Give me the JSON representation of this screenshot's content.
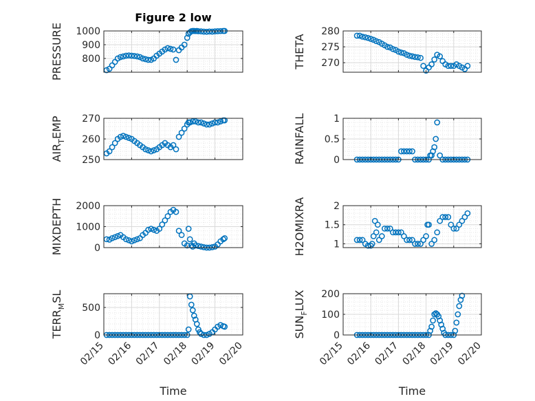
{
  "figure": {
    "title": "Figure 2 low"
  },
  "chart_data": [
    {
      "type": "scatter",
      "marker": "circle-open",
      "color": "#0072BD",
      "ylabel": "PRESSURE",
      "xlabel": "",
      "title": "Figure 2 low",
      "xlim": [
        0,
        5
      ],
      "ylim": [
        700,
        1000
      ],
      "yticks": [
        800,
        900,
        1000
      ],
      "grid": true,
      "minor_grid": true,
      "x": [
        0.1,
        0.2,
        0.3,
        0.4,
        0.5,
        0.6,
        0.7,
        0.8,
        0.9,
        1.0,
        1.1,
        1.2,
        1.3,
        1.4,
        1.5,
        1.6,
        1.7,
        1.8,
        1.9,
        2.0,
        2.1,
        2.2,
        2.3,
        2.4,
        2.5,
        2.6,
        2.7,
        2.8,
        2.9,
        3.0,
        3.05,
        3.1,
        3.15,
        3.2,
        3.25,
        3.3,
        3.35,
        3.4,
        3.5,
        3.6,
        3.7,
        3.8,
        3.9,
        4.0,
        4.1,
        4.2,
        4.3,
        4.35
      ],
      "y": [
        715,
        725,
        750,
        775,
        800,
        810,
        815,
        820,
        822,
        820,
        818,
        815,
        810,
        800,
        795,
        790,
        790,
        800,
        820,
        835,
        850,
        865,
        875,
        870,
        865,
        790,
        860,
        880,
        900,
        950,
        980,
        990,
        998,
        1000,
        1000,
        999,
        1000,
        998,
        997,
        995,
        994,
        996,
        995,
        997,
        998,
        999,
        1000,
        1000
      ]
    },
    {
      "type": "scatter",
      "marker": "circle-open",
      "color": "#0072BD",
      "ylabel": "THETA",
      "xlabel": "",
      "xlim": [
        0,
        5
      ],
      "ylim": [
        267,
        280
      ],
      "yticks": [
        270,
        275,
        280
      ],
      "grid": true,
      "minor_grid": true,
      "x": [
        0.5,
        0.6,
        0.7,
        0.8,
        0.9,
        1.0,
        1.1,
        1.2,
        1.3,
        1.4,
        1.5,
        1.6,
        1.7,
        1.8,
        1.9,
        2.0,
        2.1,
        2.2,
        2.3,
        2.4,
        2.5,
        2.6,
        2.7,
        2.8,
        2.9,
        3.0,
        3.1,
        3.2,
        3.3,
        3.4,
        3.5,
        3.6,
        3.7,
        3.8,
        3.9,
        4.0,
        4.1,
        4.2,
        4.3,
        4.4,
        4.5
      ],
      "y": [
        278.5,
        278.5,
        278.2,
        278,
        277.8,
        277.5,
        277.2,
        276.8,
        276.5,
        276,
        275.5,
        275,
        274.8,
        274.3,
        274,
        273.5,
        273.2,
        273,
        272.5,
        272.2,
        272,
        271.8,
        271.7,
        271.5,
        269,
        267.5,
        268.5,
        269.5,
        271,
        272.5,
        272,
        270.5,
        269.5,
        269,
        269,
        269,
        269.5,
        269,
        268.5,
        268,
        269
      ]
    },
    {
      "type": "scatter",
      "marker": "circle-open",
      "color": "#0072BD",
      "ylabel": "AIR_TEMP",
      "xlabel": "",
      "xlim": [
        0,
        5
      ],
      "ylim": [
        250,
        270
      ],
      "yticks": [
        250,
        260,
        270
      ],
      "grid": true,
      "minor_grid": true,
      "x": [
        0.1,
        0.2,
        0.3,
        0.4,
        0.5,
        0.6,
        0.7,
        0.8,
        0.9,
        1.0,
        1.1,
        1.2,
        1.3,
        1.4,
        1.5,
        1.6,
        1.7,
        1.8,
        1.9,
        2.0,
        2.1,
        2.2,
        2.3,
        2.4,
        2.5,
        2.6,
        2.7,
        2.8,
        2.9,
        3.0,
        3.05,
        3.1,
        3.2,
        3.3,
        3.4,
        3.5,
        3.6,
        3.7,
        3.8,
        3.9,
        4.0,
        4.1,
        4.2,
        4.3,
        4.35
      ],
      "y": [
        253,
        254,
        256,
        258,
        260,
        261,
        261.5,
        261,
        260.5,
        260,
        259,
        258,
        257,
        256,
        255,
        254.5,
        254,
        254.5,
        255,
        256,
        257,
        258,
        257,
        256,
        257,
        255,
        261,
        263,
        265,
        267,
        268,
        268,
        268.5,
        268.5,
        268,
        268,
        267.5,
        267,
        267,
        267.5,
        268,
        268,
        268.5,
        269,
        269
      ]
    },
    {
      "type": "scatter",
      "marker": "circle-open",
      "color": "#0072BD",
      "ylabel": "RAINFALL",
      "xlabel": "",
      "xlim": [
        0,
        5
      ],
      "ylim": [
        0,
        1
      ],
      "yticks": [
        0,
        0.5,
        1
      ],
      "grid": true,
      "minor_grid": true,
      "x": [
        0.5,
        0.6,
        0.7,
        0.8,
        0.9,
        1.0,
        1.1,
        1.2,
        1.3,
        1.4,
        1.5,
        1.6,
        1.7,
        1.8,
        1.9,
        2.0,
        2.1,
        2.2,
        2.3,
        2.4,
        2.5,
        2.6,
        2.7,
        2.8,
        2.9,
        3.0,
        3.1,
        3.15,
        3.2,
        3.25,
        3.3,
        3.35,
        3.4,
        3.5,
        3.6,
        3.7,
        3.8,
        3.9,
        4.0,
        4.1,
        4.2,
        4.3,
        4.4,
        4.5
      ],
      "y": [
        0,
        0,
        0,
        0,
        0,
        0,
        0,
        0,
        0,
        0,
        0,
        0,
        0,
        0,
        0,
        0,
        0.2,
        0.2,
        0.2,
        0.2,
        0.2,
        0,
        0,
        0,
        0,
        0,
        0,
        0.1,
        0.1,
        0.2,
        0.3,
        0.5,
        0.9,
        0.1,
        0,
        0,
        0,
        0,
        0,
        0,
        0,
        0,
        0,
        0
      ]
    },
    {
      "type": "scatter",
      "marker": "circle-open",
      "color": "#0072BD",
      "ylabel": "MIXDEPTH",
      "xlabel": "",
      "xlim": [
        0,
        5
      ],
      "ylim": [
        0,
        2000
      ],
      "yticks": [
        0,
        1000,
        2000
      ],
      "grid": true,
      "minor_grid": true,
      "x": [
        0.1,
        0.2,
        0.3,
        0.4,
        0.5,
        0.6,
        0.7,
        0.8,
        0.9,
        1.0,
        1.1,
        1.2,
        1.3,
        1.4,
        1.5,
        1.6,
        1.7,
        1.8,
        1.9,
        2.0,
        2.1,
        2.2,
        2.3,
        2.4,
        2.5,
        2.6,
        2.7,
        2.8,
        2.9,
        3.0,
        3.05,
        3.1,
        3.15,
        3.2,
        3.25,
        3.3,
        3.4,
        3.5,
        3.6,
        3.7,
        3.8,
        3.9,
        4.0,
        4.1,
        4.2,
        4.3,
        4.35
      ],
      "y": [
        400,
        380,
        450,
        500,
        550,
        600,
        500,
        400,
        350,
        300,
        350,
        400,
        450,
        600,
        700,
        850,
        900,
        850,
        800,
        900,
        1100,
        1300,
        1500,
        1700,
        1800,
        1700,
        800,
        600,
        200,
        100,
        900,
        400,
        100,
        50,
        200,
        100,
        80,
        50,
        20,
        0,
        0,
        20,
        50,
        150,
        300,
        400,
        450
      ]
    },
    {
      "type": "scatter",
      "marker": "circle-open",
      "color": "#0072BD",
      "ylabel": "H2OMIXRA",
      "xlabel": "",
      "xlim": [
        0,
        5
      ],
      "ylim": [
        0.9,
        2
      ],
      "yticks": [
        1,
        1.5,
        2
      ],
      "grid": true,
      "minor_grid": true,
      "x": [
        0.5,
        0.6,
        0.7,
        0.8,
        0.9,
        1.0,
        1.05,
        1.1,
        1.15,
        1.2,
        1.25,
        1.3,
        1.4,
        1.5,
        1.6,
        1.7,
        1.8,
        1.9,
        2.0,
        2.1,
        2.2,
        2.3,
        2.4,
        2.5,
        2.6,
        2.7,
        2.8,
        2.9,
        3.0,
        3.05,
        3.1,
        3.2,
        3.3,
        3.4,
        3.5,
        3.6,
        3.7,
        3.8,
        3.9,
        4.0,
        4.1,
        4.2,
        4.3,
        4.4,
        4.5
      ],
      "y": [
        1.1,
        1.1,
        1.1,
        1.0,
        0.95,
        0.95,
        1.0,
        1.2,
        1.6,
        1.3,
        1.5,
        1.1,
        1.2,
        1.4,
        1.4,
        1.4,
        1.3,
        1.3,
        1.3,
        1.3,
        1.2,
        1.1,
        1.1,
        1.1,
        1.0,
        1.0,
        1.0,
        1.1,
        1.2,
        1.5,
        1.5,
        1.0,
        1.1,
        1.3,
        1.6,
        1.7,
        1.7,
        1.7,
        1.5,
        1.4,
        1.4,
        1.5,
        1.6,
        1.7,
        1.8
      ]
    },
    {
      "type": "scatter",
      "marker": "circle-open",
      "color": "#0072BD",
      "ylabel": "TERR_MSL",
      "xlabel": "Time",
      "xlim": [
        0,
        5
      ],
      "ylim": [
        0,
        750
      ],
      "yticks": [
        0,
        500
      ],
      "grid": true,
      "minor_grid": true,
      "xticklabels": [
        "02/15",
        "02/16",
        "02/17",
        "02/18",
        "02/19",
        "02/20"
      ],
      "x": [
        0.1,
        0.2,
        0.3,
        0.4,
        0.5,
        0.6,
        0.7,
        0.8,
        0.9,
        1.0,
        1.1,
        1.2,
        1.3,
        1.4,
        1.5,
        1.6,
        1.7,
        1.8,
        1.9,
        2.0,
        2.1,
        2.2,
        2.3,
        2.4,
        2.5,
        2.6,
        2.7,
        2.8,
        2.9,
        3.0,
        3.05,
        3.1,
        3.15,
        3.2,
        3.25,
        3.3,
        3.35,
        3.4,
        3.45,
        3.5,
        3.6,
        3.7,
        3.8,
        3.9,
        4.0,
        4.1,
        4.2,
        4.3,
        4.35
      ],
      "y": [
        0,
        0,
        0,
        0,
        0,
        0,
        0,
        0,
        0,
        0,
        0,
        0,
        0,
        0,
        0,
        0,
        0,
        0,
        0,
        0,
        0,
        0,
        0,
        0,
        0,
        0,
        0,
        0,
        0,
        0,
        100,
        700,
        550,
        450,
        350,
        280,
        200,
        100,
        50,
        20,
        0,
        0,
        20,
        50,
        100,
        150,
        180,
        160,
        150
      ]
    },
    {
      "type": "scatter",
      "marker": "circle-open",
      "color": "#0072BD",
      "ylabel": "SUN_FLUX",
      "xlabel": "Time",
      "xlim": [
        0,
        5
      ],
      "ylim": [
        0,
        200
      ],
      "yticks": [
        0,
        100,
        200
      ],
      "grid": true,
      "minor_grid": true,
      "xticklabels": [
        "02/15",
        "02/16",
        "02/17",
        "02/18",
        "02/19",
        "02/20"
      ],
      "x": [
        0.5,
        0.6,
        0.7,
        0.8,
        0.9,
        1.0,
        1.1,
        1.2,
        1.3,
        1.4,
        1.5,
        1.6,
        1.7,
        1.8,
        1.9,
        2.0,
        2.1,
        2.2,
        2.3,
        2.4,
        2.5,
        2.6,
        2.7,
        2.8,
        2.9,
        3.0,
        3.1,
        3.15,
        3.2,
        3.25,
        3.3,
        3.35,
        3.4,
        3.45,
        3.5,
        3.55,
        3.6,
        3.65,
        3.7,
        3.8,
        3.9,
        4.0,
        4.05,
        4.1,
        4.15,
        4.2,
        4.25,
        4.3
      ],
      "y": [
        0,
        0,
        0,
        0,
        0,
        0,
        0,
        0,
        0,
        0,
        0,
        0,
        0,
        0,
        0,
        0,
        0,
        0,
        0,
        0,
        0,
        0,
        0,
        0,
        0,
        0,
        0,
        20,
        40,
        70,
        100,
        105,
        100,
        90,
        70,
        50,
        30,
        10,
        0,
        0,
        0,
        0,
        20,
        60,
        100,
        140,
        170,
        190
      ]
    }
  ]
}
